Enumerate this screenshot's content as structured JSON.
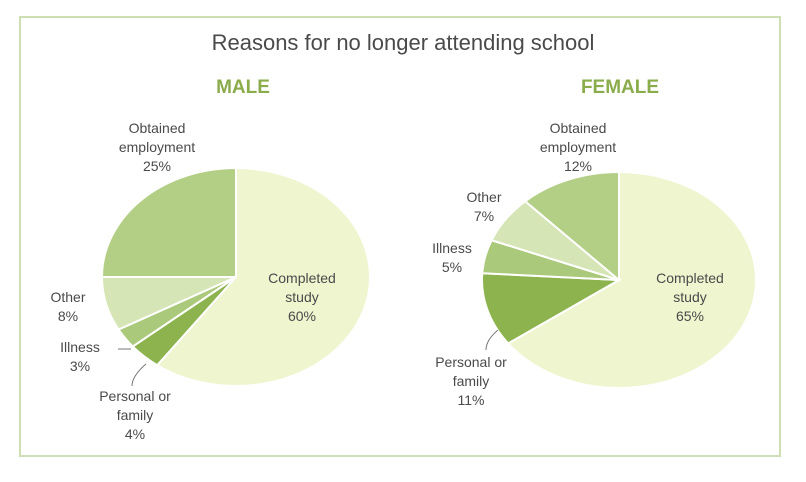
{
  "chart_data": [
    {
      "type": "pie",
      "title": "Reasons for no longer attending school",
      "subtitle": "MALE",
      "slices": [
        {
          "label": "Completed study",
          "value": 60,
          "display": "60%",
          "color": "#eff5cf"
        },
        {
          "label": "Personal or family",
          "value": 4,
          "display": "4%",
          "color": "#8db34f"
        },
        {
          "label": "Illness",
          "value": 3,
          "display": "3%",
          "color": "#aac97b"
        },
        {
          "label": "Other",
          "value": 8,
          "display": "8%",
          "color": "#d5e5b6"
        },
        {
          "label": "Obtained employment",
          "value": 25,
          "display": "25%",
          "color": "#b3cf86"
        }
      ]
    },
    {
      "type": "pie",
      "title": "Reasons for no longer attending school",
      "subtitle": "FEMALE",
      "slices": [
        {
          "label": "Completed study",
          "value": 65,
          "display": "65%",
          "color": "#eff5cf"
        },
        {
          "label": "Personal or family",
          "value": 11,
          "display": "11%",
          "color": "#8db34f"
        },
        {
          "label": "Illness",
          "value": 5,
          "display": "5%",
          "color": "#aac97b"
        },
        {
          "label": "Other",
          "value": 7,
          "display": "7%",
          "color": "#d5e5b6"
        },
        {
          "label": "Obtained employment",
          "value": 12,
          "display": "12%",
          "color": "#b3cf86"
        }
      ]
    }
  ]
}
